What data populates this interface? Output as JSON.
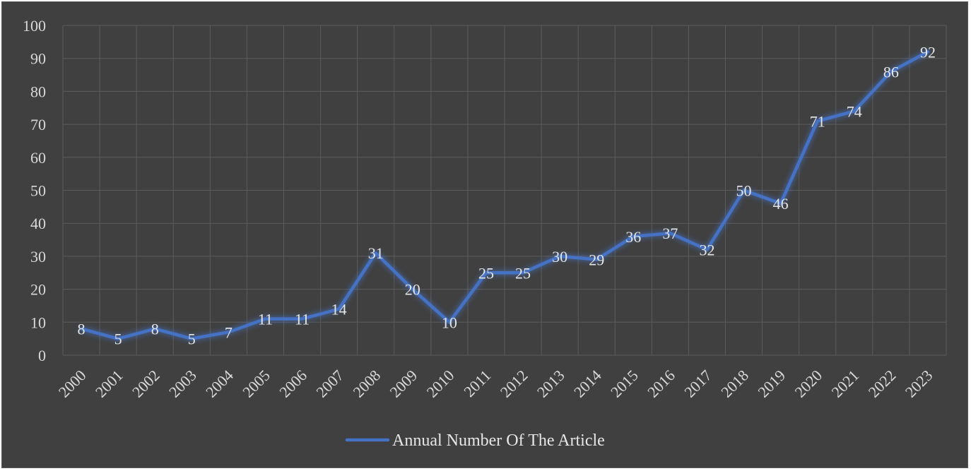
{
  "chart_data": {
    "type": "line",
    "title": "",
    "xlabel": "",
    "ylabel": "",
    "categories": [
      "2000",
      "2001",
      "2002",
      "2003",
      "2004",
      "2005",
      "2006",
      "2007",
      "2008",
      "2009",
      "2010",
      "2011",
      "2012",
      "2013",
      "2014",
      "2015",
      "2016",
      "2017",
      "2018",
      "2019",
      "2020",
      "2021",
      "2022",
      "2023"
    ],
    "series": [
      {
        "name": "Annual Number Of The Article",
        "color": "#4472c4",
        "values": [
          8,
          5,
          8,
          5,
          7,
          11,
          11,
          14,
          31,
          20,
          10,
          25,
          25,
          30,
          29,
          36,
          37,
          32,
          50,
          46,
          71,
          74,
          86,
          92
        ]
      }
    ],
    "ylim": [
      0,
      100
    ],
    "yticks": [
      0,
      10,
      20,
      30,
      40,
      50,
      60,
      70,
      80,
      90,
      100
    ],
    "grid": true,
    "legend_position": "bottom",
    "background_color": "#404040",
    "grid_color": "#5c5c5c",
    "text_color": "#d9d9d9"
  }
}
